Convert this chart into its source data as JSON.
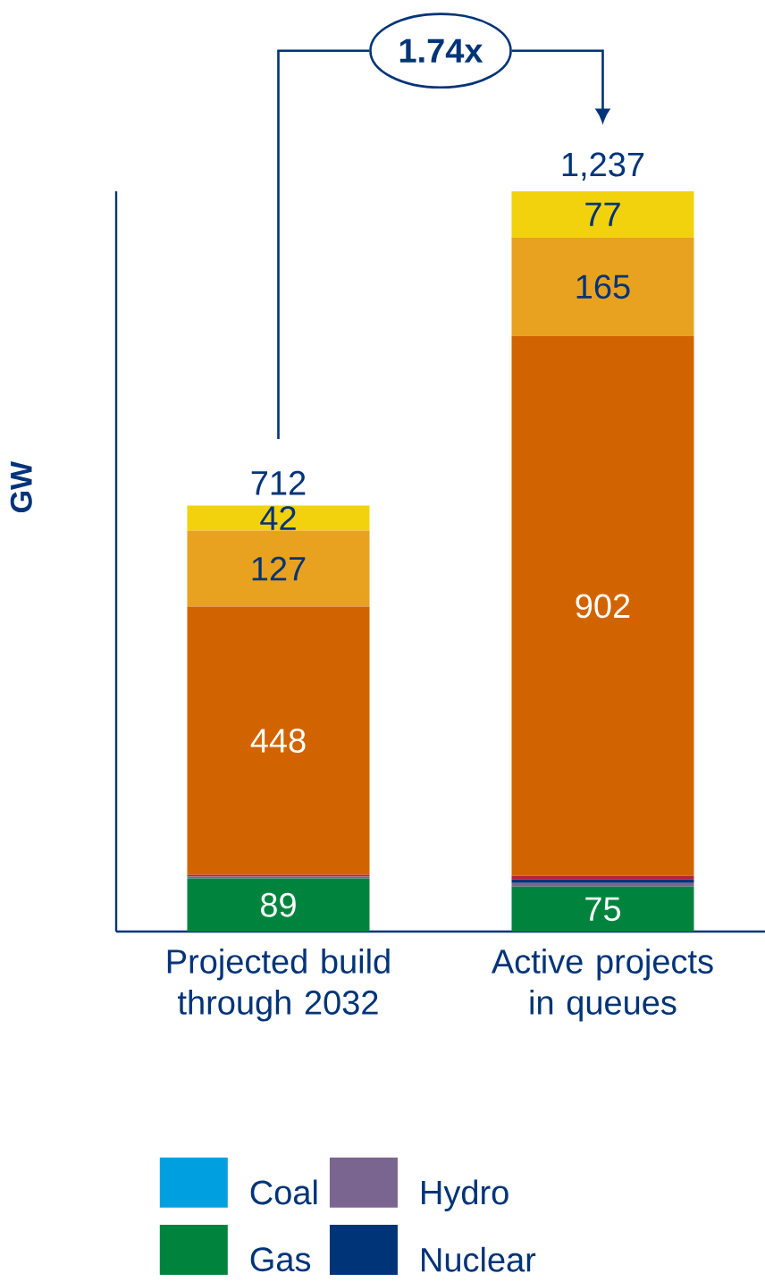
{
  "chart_data": {
    "type": "bar",
    "stacked": true,
    "ylabel": "GW",
    "categories": [
      "Projected build through 2032",
      "Active projects in queues"
    ],
    "series": [
      {
        "name": "Coal",
        "color": "#00a0e0",
        "values": [
          null,
          null
        ]
      },
      {
        "name": "Gas",
        "color": "#00843d",
        "values": [
          89,
          75
        ],
        "value_labels": [
          "89",
          "75"
        ]
      },
      {
        "name": "Hydro",
        "color": "#7a6591",
        "values": [
          3,
          6
        ]
      },
      {
        "name": "Nuclear",
        "color": "#003478",
        "values": [
          null,
          6
        ]
      },
      {
        "color": "#b5223a",
        "values": [
          3,
          6
        ]
      },
      {
        "color": "#d26400",
        "values": [
          448,
          902
        ],
        "value_labels": [
          "448",
          "902"
        ]
      },
      {
        "color": "#e8a21f",
        "values": [
          127,
          165
        ],
        "value_labels": [
          "127",
          "165"
        ]
      },
      {
        "color": "#f2d20c",
        "values": [
          42,
          77
        ],
        "value_labels": [
          "42",
          "77"
        ]
      }
    ],
    "totals": [
      "712",
      "1,237"
    ],
    "annotations": [
      "1.74x"
    ],
    "legend": "bottom",
    "tick_labels": "x"
  }
}
